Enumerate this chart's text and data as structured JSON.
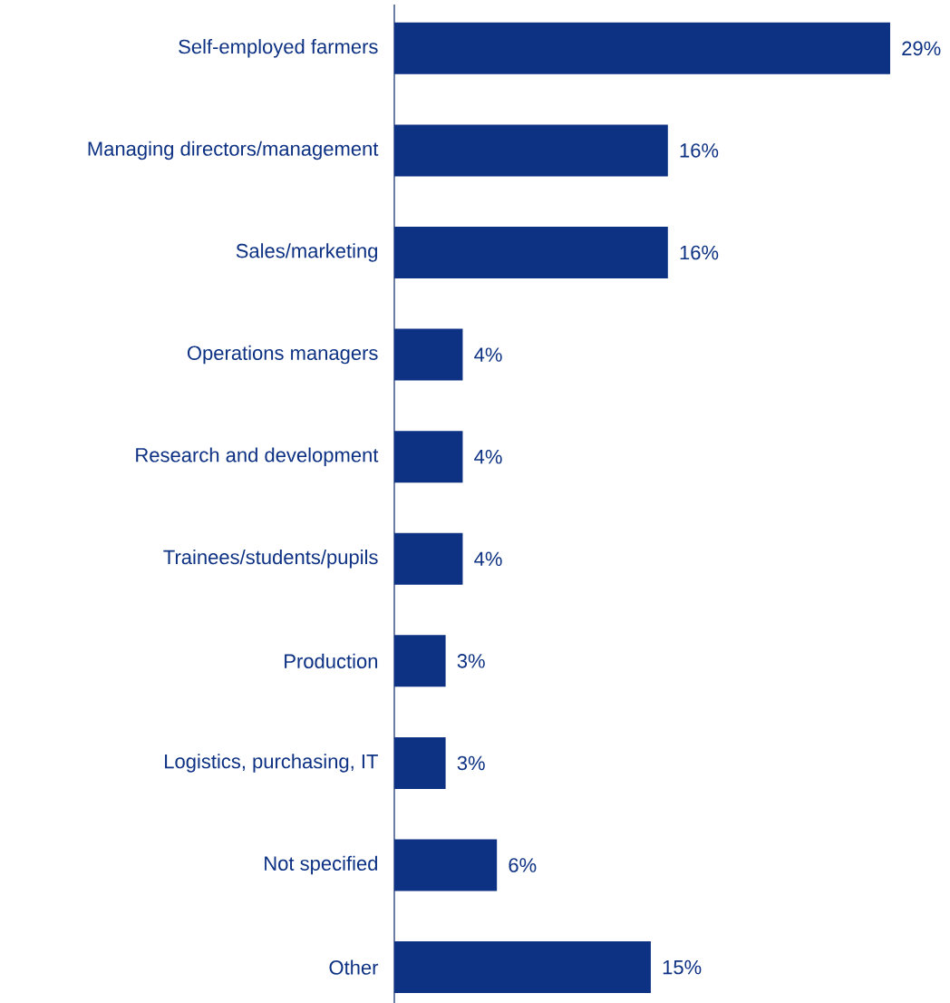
{
  "chart_data": {
    "type": "bar",
    "orientation": "horizontal",
    "categories": [
      "Self-employed farmers",
      "Managing directors/management",
      "Sales/marketing",
      "Operations managers",
      "Research and development",
      "Trainees/students/pupils",
      "Production",
      "Logistics, purchasing, IT",
      "Not specified",
      "Other"
    ],
    "values": [
      29,
      16,
      16,
      4,
      4,
      4,
      3,
      3,
      6,
      15
    ],
    "value_labels": [
      "29%",
      "16%",
      "16%",
      "4%",
      "4%",
      "4%",
      "3%",
      "3%",
      "6%",
      "15%"
    ],
    "color": "#0d3183"
  }
}
